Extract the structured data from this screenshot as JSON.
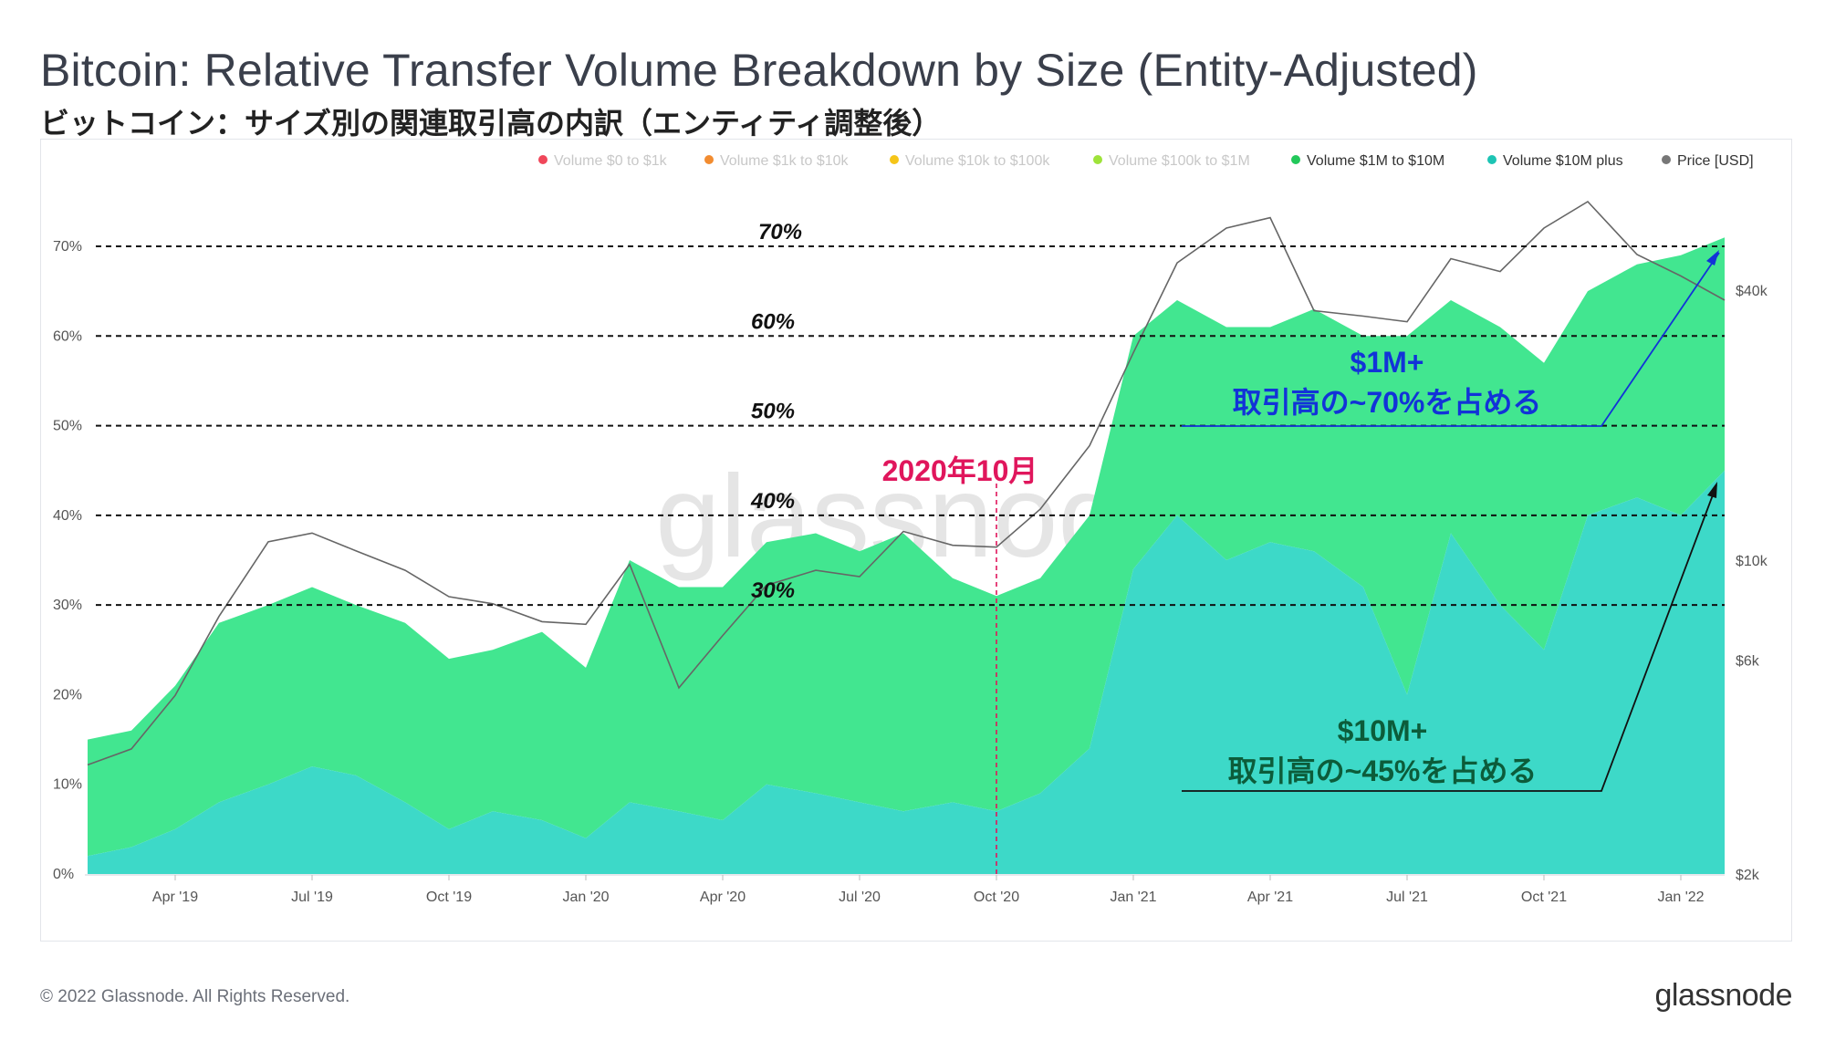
{
  "title": "Bitcoin: Relative Transfer Volume Breakdown by Size (Entity-Adjusted)",
  "subtitle": "ビットコイン：サイズ別の関連取引高の内訳（エンティティ調整後）",
  "footer": "© 2022 Glassnode. All Rights Reserved.",
  "brand": "glassnode",
  "watermark": "glassnode",
  "colors": {
    "v0_1k": "#f0475a",
    "v1k_10k": "#f28c30",
    "v10k_100k": "#f5c518",
    "v100k_1m": "#9ee33a",
    "v1m_10m": "#42e690",
    "v10m_plus": "#3dd9c8",
    "price": "#888888",
    "annotation_blue": "#1233d8",
    "annotation_green": "#0c5c3a",
    "annotation_pink": "#e0165c"
  },
  "chart_data": {
    "type": "area",
    "stacked": true,
    "legend": {
      "position": "top-right",
      "items": [
        {
          "label": "Volume $0 to $1k",
          "color": "#f0475a",
          "active": false
        },
        {
          "label": "Volume $1k to $10k",
          "color": "#f28c30",
          "active": false
        },
        {
          "label": "Volume $10k to $100k",
          "color": "#f5c518",
          "active": false
        },
        {
          "label": "Volume $100k to $1M",
          "color": "#9ee33a",
          "active": false
        },
        {
          "label": "Volume $1M to $10M",
          "color": "#22c85a",
          "active": true
        },
        {
          "label": "Volume $10M plus",
          "color": "#1dc4b4",
          "active": true
        },
        {
          "label": "Price [USD]",
          "color": "#777777",
          "active": true
        }
      ]
    },
    "x_ticks": [
      "Apr '19",
      "Jul '19",
      "Oct '19",
      "Jan '20",
      "Apr '20",
      "Jul '20",
      "Oct '20",
      "Jan '21",
      "Apr '21",
      "Jul '21",
      "Oct '21",
      "Jan '22"
    ],
    "x_tick_values": [
      2019.25,
      2019.5,
      2019.75,
      2020.0,
      2020.25,
      2020.5,
      2020.75,
      2021.0,
      2021.25,
      2021.5,
      2021.75,
      2022.0
    ],
    "xlim": [
      2019.085,
      2022.08
    ],
    "y_left_ticks": [
      "0%",
      "10%",
      "20%",
      "30%",
      "40%",
      "50%",
      "60%",
      "70%"
    ],
    "ylim": [
      0,
      70
    ],
    "y_right_ticks": [
      {
        "label": "$2k",
        "value": 2000
      },
      {
        "label": "$6k",
        "value": 6000
      },
      {
        "label": "$10k",
        "value": 10000
      },
      {
        "label": "$40k",
        "value": 40000
      }
    ],
    "y_right_scale": "log",
    "reference_lines": [
      {
        "label": "70%",
        "value": 70
      },
      {
        "label": "60%",
        "value": 60
      },
      {
        "label": "50%",
        "value": 50
      },
      {
        "label": "40%",
        "value": 40
      },
      {
        "label": "30%",
        "value": 30
      }
    ],
    "series": [
      {
        "name": "Volume $10M plus",
        "x": [
          2019.09,
          2019.17,
          2019.25,
          2019.33,
          2019.42,
          2019.5,
          2019.58,
          2019.67,
          2019.75,
          2019.83,
          2019.92,
          2020.0,
          2020.08,
          2020.17,
          2020.25,
          2020.33,
          2020.42,
          2020.5,
          2020.58,
          2020.67,
          2020.75,
          2020.83,
          2020.92,
          2021.0,
          2021.08,
          2021.17,
          2021.25,
          2021.33,
          2021.42,
          2021.5,
          2021.58,
          2021.67,
          2021.75,
          2021.83,
          2021.92,
          2022.0,
          2022.08
        ],
        "values": [
          2,
          3,
          5,
          8,
          10,
          12,
          11,
          8,
          5,
          7,
          6,
          4,
          8,
          7,
          6,
          10,
          9,
          8,
          7,
          8,
          7,
          9,
          14,
          34,
          40,
          35,
          37,
          36,
          32,
          20,
          38,
          30,
          25,
          40,
          42,
          40,
          45
        ]
      },
      {
        "name": "Volume $1M to $10M",
        "x": [
          2019.09,
          2019.17,
          2019.25,
          2019.33,
          2019.42,
          2019.5,
          2019.58,
          2019.67,
          2019.75,
          2019.83,
          2019.92,
          2020.0,
          2020.08,
          2020.17,
          2020.25,
          2020.33,
          2020.42,
          2020.5,
          2020.58,
          2020.67,
          2020.75,
          2020.83,
          2020.92,
          2021.0,
          2021.08,
          2021.17,
          2021.25,
          2021.33,
          2021.42,
          2021.5,
          2021.58,
          2021.67,
          2021.75,
          2021.83,
          2021.92,
          2022.0,
          2022.08
        ],
        "values": [
          13,
          13,
          16,
          20,
          20,
          20,
          19,
          20,
          19,
          18,
          21,
          19,
          27,
          25,
          26,
          27,
          29,
          28,
          31,
          25,
          24,
          24,
          26,
          26,
          24,
          26,
          24,
          27,
          28,
          40,
          26,
          31,
          32,
          25,
          26,
          29,
          26
        ]
      },
      {
        "name": "Price [USD]",
        "x": [
          2019.09,
          2019.17,
          2019.25,
          2019.33,
          2019.42,
          2019.5,
          2019.58,
          2019.67,
          2019.75,
          2019.83,
          2019.92,
          2020.0,
          2020.08,
          2020.17,
          2020.25,
          2020.33,
          2020.42,
          2020.5,
          2020.58,
          2020.67,
          2020.75,
          2020.83,
          2020.92,
          2021.0,
          2021.08,
          2021.17,
          2021.25,
          2021.33,
          2021.42,
          2021.5,
          2021.58,
          2021.67,
          2021.75,
          2021.83,
          2021.92,
          2022.0,
          2022.08
        ],
        "values": [
          3500,
          3800,
          5000,
          7500,
          11000,
          11500,
          10500,
          9500,
          8300,
          8000,
          7300,
          7200,
          9800,
          5200,
          6800,
          8800,
          9500,
          9200,
          11600,
          10800,
          10700,
          13000,
          18000,
          29000,
          46000,
          55000,
          58000,
          36000,
          35000,
          34000,
          47000,
          44000,
          55000,
          63000,
          48000,
          43000,
          38000
        ]
      }
    ],
    "annotations": [
      {
        "label_line1": "$1M+",
        "label_line2": "取引高の~70%を占める",
        "color": "#1233d8",
        "points_to_value": 70
      },
      {
        "label_line1": "$10M+",
        "label_line2": "取引高の~45%を占める",
        "color": "#0c5c3a",
        "points_to_value": 45
      },
      {
        "label": "2020年10月",
        "color": "#e0165c",
        "x": 2020.75
      }
    ]
  }
}
